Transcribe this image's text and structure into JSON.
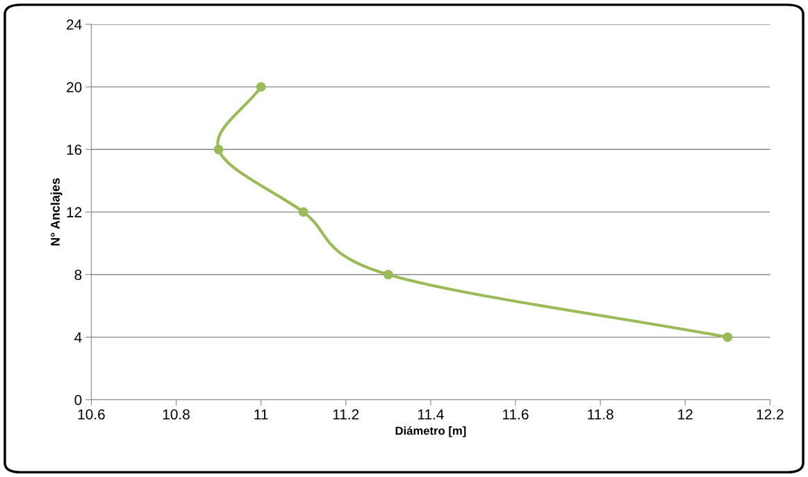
{
  "chart_data": {
    "type": "line",
    "xlabel": "Diámetro [m]",
    "ylabel": "N° Anclajes",
    "xlim": [
      10.6,
      12.2
    ],
    "xticks": [
      10.6,
      10.8,
      11,
      11.2,
      11.4,
      11.6,
      11.8,
      12,
      12.2
    ],
    "ylim": [
      0,
      24
    ],
    "yticks": [
      0,
      4,
      8,
      12,
      16,
      20,
      24
    ],
    "grid": "y",
    "marker": "circle",
    "line_style": "solid",
    "series": [
      {
        "color": "#9bbb59",
        "x": [
          12.1,
          11.3,
          11.1,
          10.9,
          11
        ],
        "values": [
          4,
          8,
          12,
          16,
          20
        ]
      }
    ]
  }
}
